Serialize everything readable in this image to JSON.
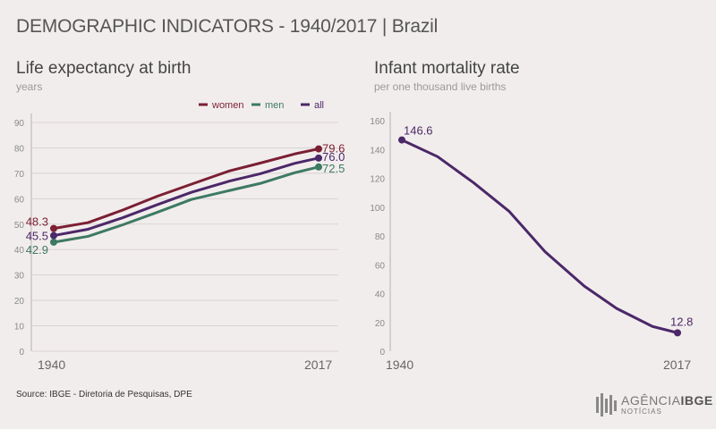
{
  "header": {
    "title": "DEMOGRAPHIC INDICATORS - 1940/2017 | Brazil"
  },
  "footer": {
    "source": "Source: IBGE - Diretoria de Pesquisas, DPE"
  },
  "logo": {
    "main": "AGÊNCIA",
    "bold": "IBGE",
    "sub": "NOTÍCIAS"
  },
  "colors": {
    "women": "#7b1f33",
    "men": "#3d7a62",
    "all": "#4b2868",
    "infant": "#4b2868",
    "grid": "#d9d3d3",
    "tick": "#888888"
  },
  "chart_data": [
    {
      "type": "line",
      "title": "Life expectancy at birth",
      "subtitle": "years",
      "x": [
        1940,
        1950,
        1960,
        1970,
        1980,
        1991,
        2000,
        2010,
        2017
      ],
      "xticks": [
        "1940",
        "2017"
      ],
      "ylim": [
        0,
        90
      ],
      "yticks": [
        0,
        10,
        20,
        30,
        40,
        50,
        60,
        70,
        80,
        90
      ],
      "grid": true,
      "legend": "top-right",
      "series": [
        {
          "name": "women",
          "values": [
            48.3,
            50.6,
            55.5,
            60.9,
            65.7,
            70.9,
            74.0,
            77.6,
            79.6
          ],
          "first_label": "48.3",
          "last_label": "79.6"
        },
        {
          "name": "men",
          "values": [
            42.9,
            45.2,
            49.7,
            54.6,
            59.7,
            63.2,
            66.0,
            70.2,
            72.5
          ],
          "first_label": "42.9",
          "last_label": "72.5"
        },
        {
          "name": "all",
          "values": [
            45.5,
            48.0,
            52.5,
            57.6,
            62.5,
            66.9,
            69.8,
            73.9,
            76.0
          ],
          "first_label": "45.5",
          "last_label": "76.0"
        }
      ]
    },
    {
      "type": "line",
      "title": "Infant mortality rate",
      "subtitle": "per one thousand live births",
      "x": [
        1940,
        1950,
        1960,
        1970,
        1980,
        1991,
        2000,
        2010,
        2017
      ],
      "xticks": [
        "1940",
        "2017"
      ],
      "ylim": [
        0,
        160
      ],
      "yticks": [
        0,
        20,
        40,
        60,
        80,
        100,
        120,
        140,
        160
      ],
      "grid": false,
      "series": [
        {
          "name": "",
          "values": [
            146.6,
            135.0,
            117.0,
            97.0,
            69.1,
            45.1,
            29.7,
            17.2,
            12.8
          ],
          "first_label": "146.6",
          "last_label": "12.8"
        }
      ]
    }
  ]
}
